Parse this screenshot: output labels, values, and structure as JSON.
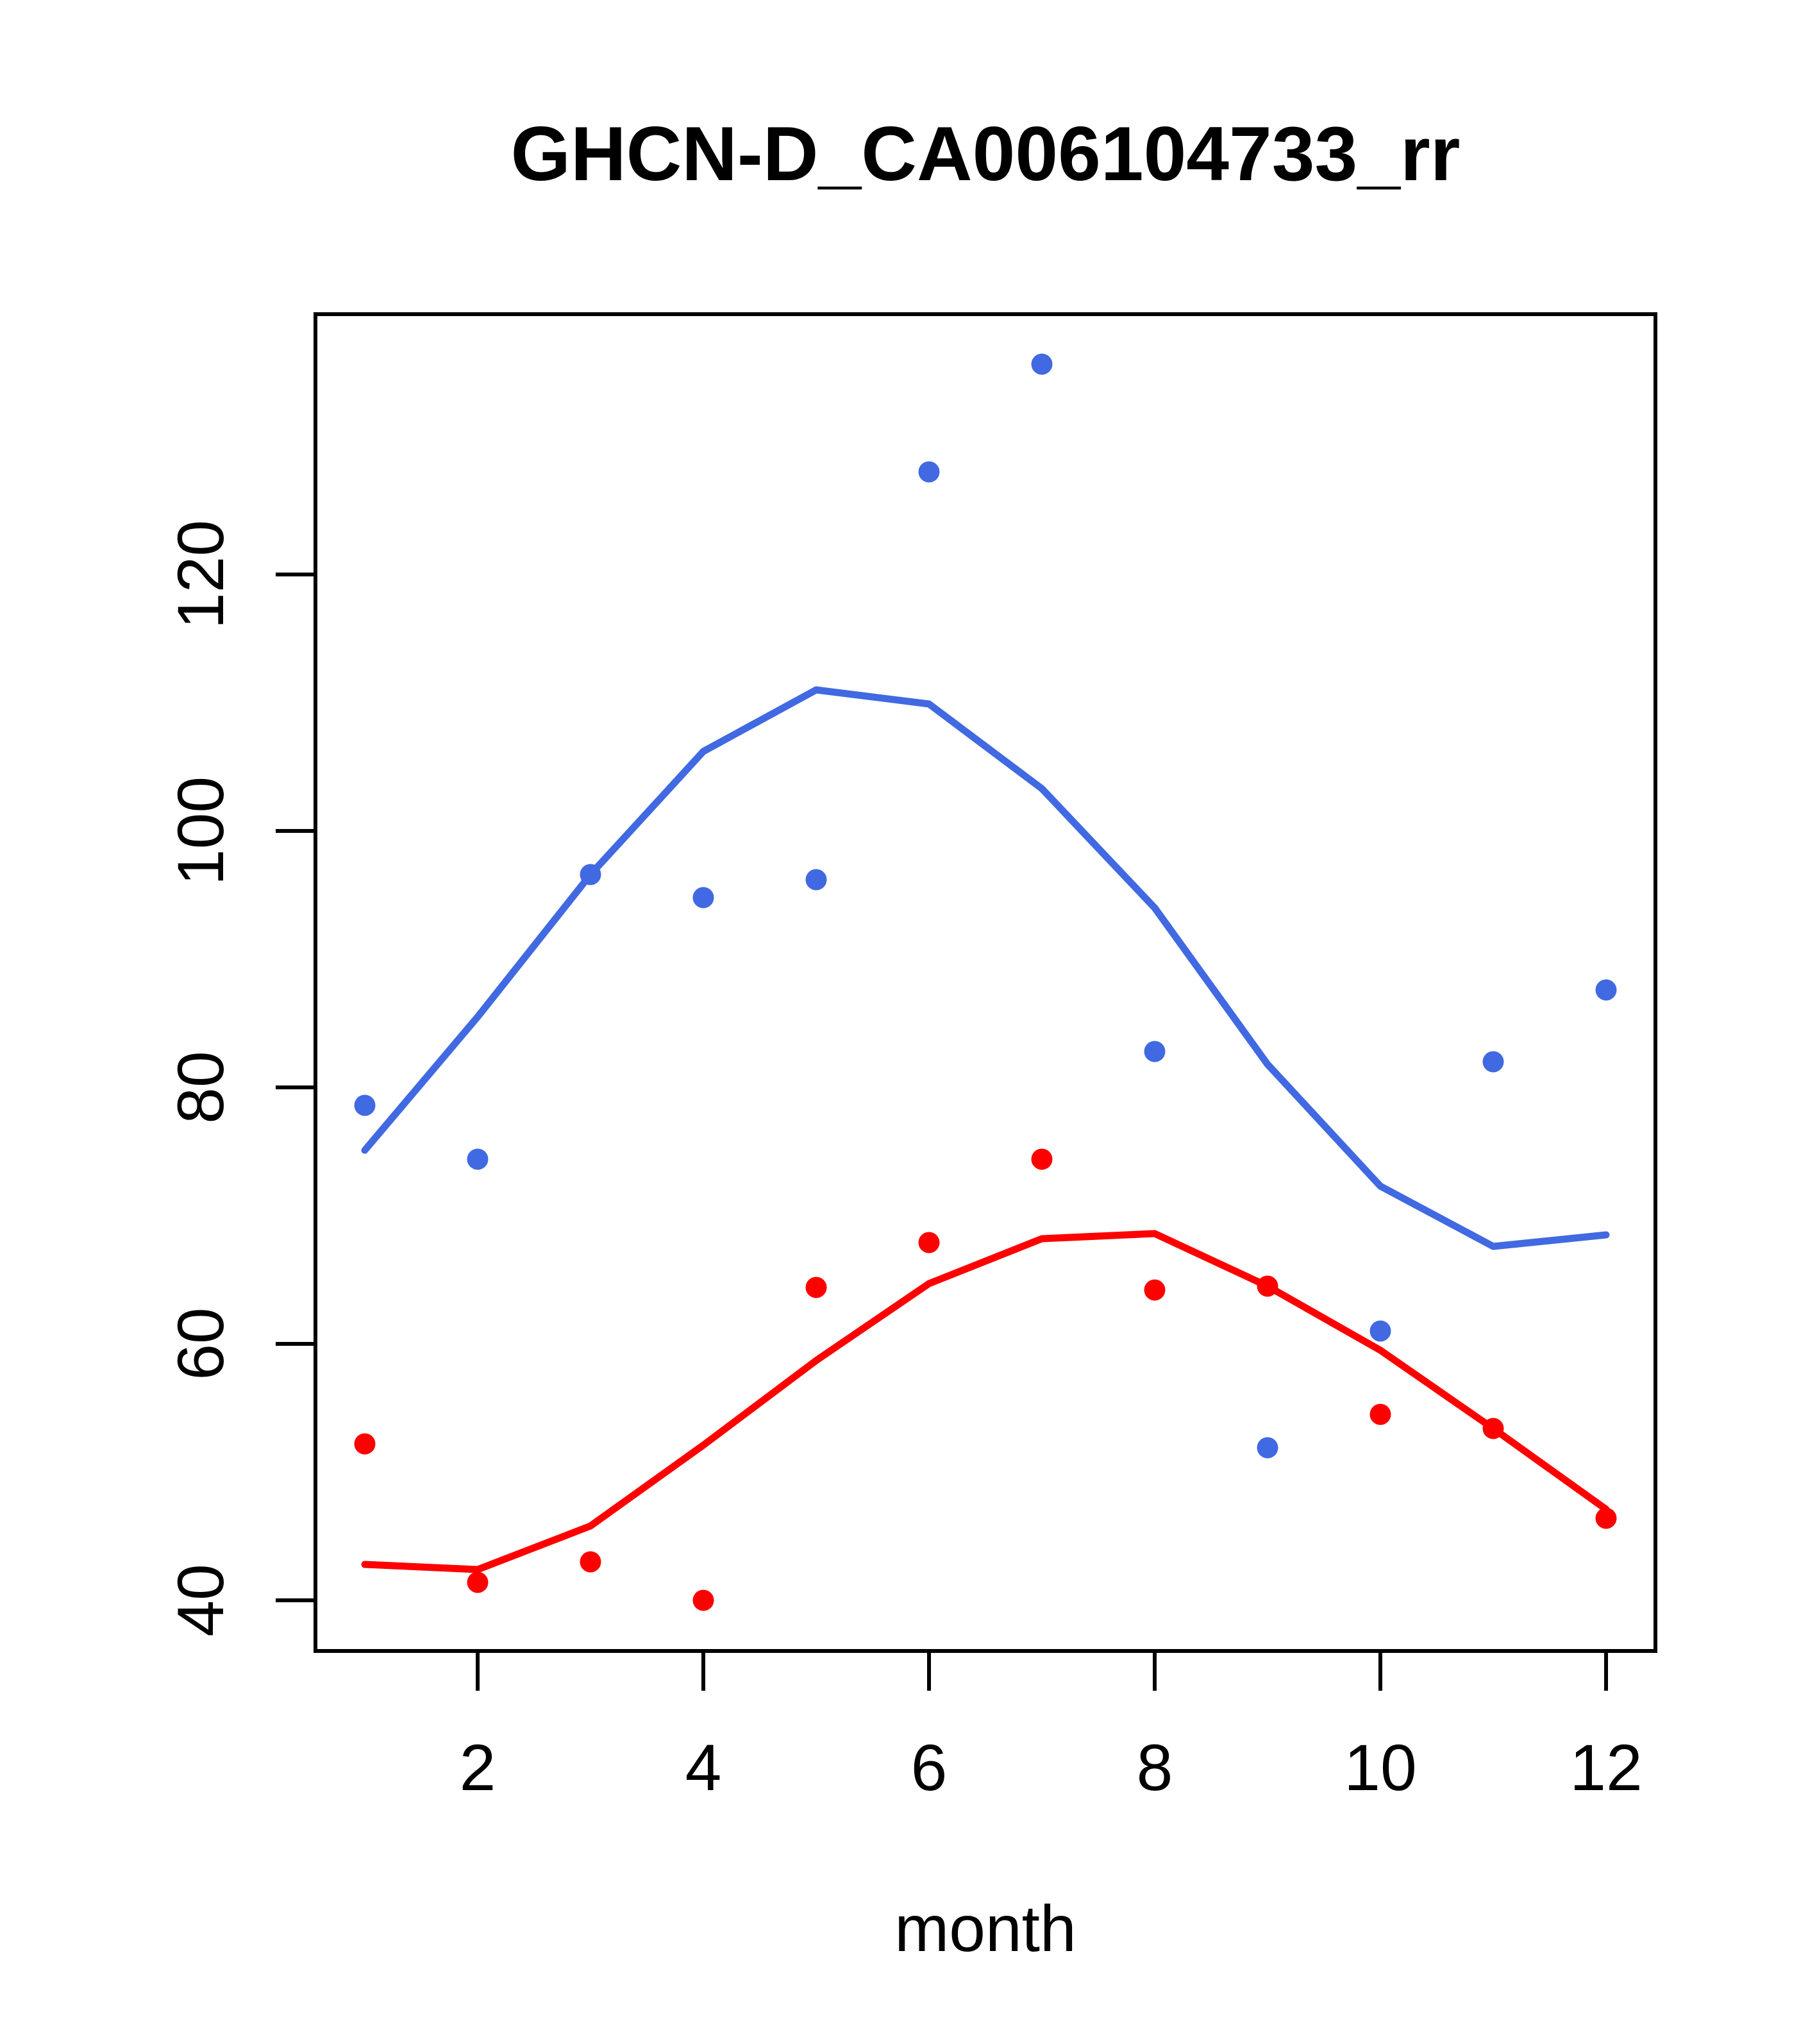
{
  "chart": {
    "title": "GHCN-D_CA006104733_rr",
    "xlabel": "month",
    "ylabel": ""
  },
  "chart_data": {
    "type": "scatter",
    "title": "GHCN-D_CA006104733_rr",
    "xlabel": "month",
    "ylabel": "",
    "x": [
      1,
      2,
      3,
      4,
      5,
      6,
      7,
      8,
      9,
      10,
      11,
      12
    ],
    "series": [
      {
        "name": "blue_points",
        "type": "scatter",
        "color": "#4169E1",
        "values": [
          78.6,
          74.4,
          96.6,
          94.8,
          96.2,
          128.0,
          136.4,
          82.8,
          51.9,
          61.0,
          82.0,
          87.6
        ]
      },
      {
        "name": "blue_line",
        "type": "line",
        "color": "#4169E1",
        "values": [
          75.1,
          85.5,
          96.6,
          106.2,
          111.0,
          109.9,
          103.3,
          94.0,
          81.8,
          72.3,
          67.6,
          68.5
        ]
      },
      {
        "name": "red_points",
        "type": "scatter",
        "color": "#FF0000",
        "values": [
          52.2,
          41.4,
          43.0,
          40.0,
          64.4,
          67.9,
          74.4,
          64.2,
          64.5,
          54.5,
          53.4,
          46.4
        ]
      },
      {
        "name": "red_line",
        "type": "line",
        "color": "#FF0000",
        "values": [
          42.8,
          42.4,
          45.8,
          52.1,
          58.7,
          64.7,
          68.2,
          68.6,
          64.5,
          59.5,
          53.4,
          47.1
        ]
      }
    ],
    "x_ticks": [
      2,
      4,
      6,
      8,
      10,
      12
    ],
    "y_ticks": [
      40,
      60,
      80,
      100,
      120
    ],
    "xlim": [
      0.56,
      12.44
    ],
    "ylim": [
      36.1,
      140.3
    ],
    "grid": false,
    "legend": null,
    "frame": true,
    "background": "#ffffff",
    "axis_color": "#000000"
  }
}
